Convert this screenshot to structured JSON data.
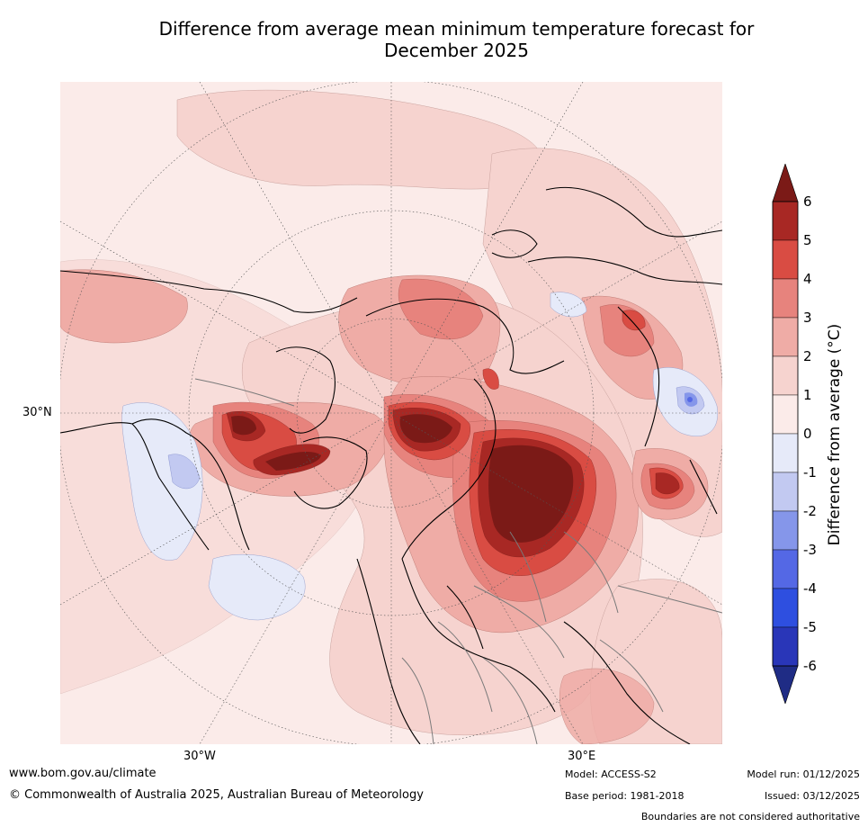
{
  "title_line1": "Difference from average mean minimum temperature forecast for",
  "title_line2": "December 2025",
  "map": {
    "lat_label": "30°N",
    "lon_labels": [
      "30°W",
      "30°E"
    ]
  },
  "colorbar": {
    "label": "Difference from average (°C)",
    "ticks": [
      "6",
      "5",
      "4",
      "3",
      "2",
      "1",
      "0",
      "-1",
      "-2",
      "-3",
      "-4",
      "-5",
      "-6"
    ],
    "colors": {
      "above_6": "#7b1a17",
      "5_to_6": "#a82824",
      "4_to_5": "#d94c43",
      "3_to_4": "#e7837d",
      "2_to_3": "#efaca6",
      "1_to_2": "#f6d3cf",
      "0_to_1": "#fbebe9",
      "m1_to_0": "#e6eaf9",
      "m2_to_m1": "#c2c9f1",
      "m3_to_m2": "#8596ea",
      "m4_to_m3": "#5468e5",
      "m5_to_m4": "#2e4fe0",
      "m6_to_m5": "#2936b8",
      "below_m6": "#1f2c85"
    }
  },
  "footer": {
    "website": "www.bom.gov.au/climate",
    "copyright": "© Commonwealth of Australia 2025, Australian Bureau of Meteorology",
    "model": "Model: ACCESS-S2",
    "base_period": "Base period: 1981-2018",
    "model_run": "Model run: 01/12/2025",
    "issued": "Issued: 03/12/2025",
    "disclaimer": "Boundaries are not considered authoritative"
  }
}
